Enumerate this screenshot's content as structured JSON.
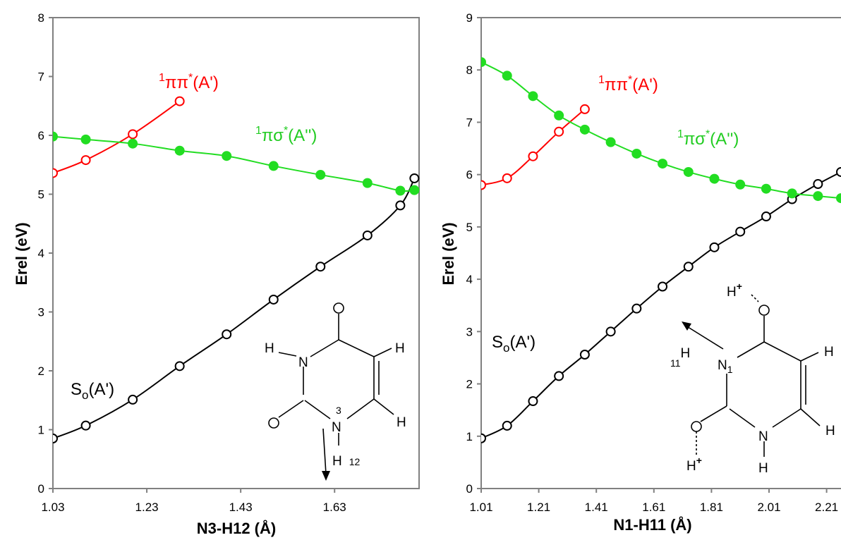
{
  "chart_data": [
    {
      "type": "line",
      "xlabel": "N3-H12 (Å)",
      "ylabel": "Erel (eV)",
      "xticks": [
        "1.03",
        "1.23",
        "1.43",
        "1.63"
      ],
      "yticks": [
        "0",
        "1",
        "2",
        "3",
        "4",
        "5",
        "6",
        "7",
        "8"
      ],
      "xlim": [
        1.03,
        1.81
      ],
      "ylim": [
        0,
        8
      ],
      "grid": false,
      "series": [
        {
          "name": "S0(A')",
          "color": "#000000",
          "marker": "open-circle",
          "x": [
            1.03,
            1.1,
            1.2,
            1.3,
            1.4,
            1.5,
            1.6,
            1.7,
            1.77,
            1.8
          ],
          "y": [
            0.85,
            1.07,
            1.51,
            2.08,
            2.62,
            3.21,
            3.77,
            4.3,
            4.81,
            5.27
          ]
        },
        {
          "name": "1ππ*(A')",
          "color": "#ff0000",
          "marker": "open-circle",
          "x": [
            1.03,
            1.1,
            1.2,
            1.3
          ],
          "y": [
            5.36,
            5.58,
            6.02,
            6.58
          ]
        },
        {
          "name": "1πσ*(A'')",
          "color": "#22dd22",
          "marker": "filled-circle",
          "x": [
            1.03,
            1.1,
            1.2,
            1.3,
            1.4,
            1.5,
            1.6,
            1.7,
            1.77,
            1.8
          ],
          "y": [
            5.98,
            5.93,
            5.86,
            5.74,
            5.65,
            5.48,
            5.33,
            5.19,
            5.06,
            5.07
          ]
        }
      ],
      "annotations": {
        "s0": {
          "main": "S",
          "sub": "o",
          "rest": "(A')"
        },
        "pipi": {
          "sup": "1",
          "main": "ππ",
          "sup2": "*",
          "rest": "(A')"
        },
        "pisigma": {
          "sup": "1",
          "main": "πσ",
          "sup2": "*",
          "rest": "(A'')"
        }
      },
      "molecule": {
        "atoms": [
          "H",
          "N",
          "O",
          "H",
          "O",
          "N",
          "H",
          "H"
        ],
        "labels": {
          "n3_index": "3",
          "h12": "H",
          "h12_index": "12"
        }
      }
    },
    {
      "type": "line",
      "xlabel": "N1-H11 (Å)",
      "ylabel": "Erel (eV)",
      "xticks": [
        "1.01",
        "1.21",
        "1.41",
        "1.61",
        "1.81",
        "2.01",
        "2.21"
      ],
      "yticks": [
        "0",
        "1",
        "2",
        "3",
        "4",
        "5",
        "6",
        "7",
        "8",
        "9"
      ],
      "xlim": [
        1.01,
        2.26
      ],
      "ylim": [
        0,
        9
      ],
      "grid": false,
      "series": [
        {
          "name": "S0(A')",
          "color": "#000000",
          "marker": "open-circle",
          "x": [
            1.01,
            1.1,
            1.19,
            1.28,
            1.37,
            1.46,
            1.55,
            1.64,
            1.73,
            1.82,
            1.91,
            2.0,
            2.09,
            2.18,
            2.26
          ],
          "y": [
            0.96,
            1.2,
            1.67,
            2.15,
            2.56,
            3.0,
            3.44,
            3.86,
            4.24,
            4.61,
            4.91,
            5.2,
            5.53,
            5.82,
            6.05
          ]
        },
        {
          "name": "1ππ*(A')",
          "color": "#ff0000",
          "marker": "open-circle",
          "x": [
            1.01,
            1.1,
            1.19,
            1.28,
            1.37
          ],
          "y": [
            5.8,
            5.93,
            6.35,
            6.82,
            7.25
          ]
        },
        {
          "name": "1πσ*(A'')",
          "color": "#22dd22",
          "marker": "filled-circle",
          "x": [
            1.01,
            1.1,
            1.19,
            1.28,
            1.37,
            1.46,
            1.55,
            1.64,
            1.73,
            1.82,
            1.91,
            2.0,
            2.09,
            2.18,
            2.26
          ],
          "y": [
            8.15,
            7.89,
            7.5,
            7.13,
            6.86,
            6.62,
            6.4,
            6.21,
            6.05,
            5.92,
            5.81,
            5.73,
            5.64,
            5.59,
            5.55
          ]
        }
      ],
      "annotations": {
        "s0": {
          "main": "S",
          "sub": "o",
          "rest": "(A')"
        },
        "pipi": {
          "sup": "1",
          "main": "ππ",
          "sup2": "*",
          "rest": "(A')"
        },
        "pisigma": {
          "sup": "1",
          "main": "πσ",
          "sup2": "*",
          "rest": "(A'')"
        }
      },
      "molecule": {
        "atoms": [
          "H",
          "O",
          "N",
          "H",
          "O",
          "N",
          "H",
          "H",
          "H"
        ],
        "labels": {
          "h11_index": "11",
          "h11": "H",
          "n1": "N",
          "n1_index": "1",
          "hplus_top": "H",
          "hplus_bottom": "H",
          "plus": "+"
        }
      }
    }
  ]
}
